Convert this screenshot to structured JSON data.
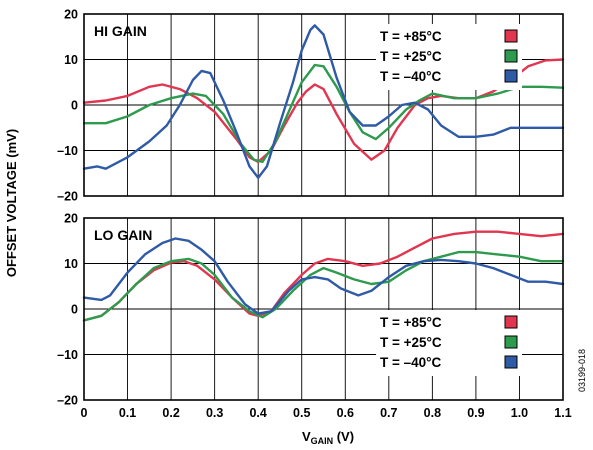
{
  "chart_data": [
    {
      "type": "line",
      "panel_label": "HI GAIN",
      "xlabel_main": "V",
      "xlabel_sub": "GAIN",
      "xlabel_unit": " (V)",
      "ylabel": "OFFSET VOLTAGE (mV)",
      "xlim": [
        0,
        1.1
      ],
      "ylim": [
        -20,
        20
      ],
      "x_ticks": [
        "0",
        "0.1",
        "0.2",
        "0.3",
        "0.4",
        "0.5",
        "0.6",
        "0.7",
        "0.8",
        "0.9",
        "1.0",
        "1.1"
      ],
      "y_ticks": [
        "20",
        "10",
        "0",
        "–10",
        "–20"
      ],
      "grid": true,
      "legend_placement": "top-right",
      "series": [
        {
          "name": "T = +85°C",
          "color": "#e0364f",
          "points": [
            [
              0.0,
              0.5
            ],
            [
              0.05,
              1.0
            ],
            [
              0.1,
              2.0
            ],
            [
              0.15,
              4.0
            ],
            [
              0.18,
              4.5
            ],
            [
              0.22,
              3.5
            ],
            [
              0.26,
              1.5
            ],
            [
              0.3,
              -1.5
            ],
            [
              0.35,
              -7.5
            ],
            [
              0.38,
              -11.5
            ],
            [
              0.4,
              -12.5
            ],
            [
              0.43,
              -10.0
            ],
            [
              0.46,
              -4.5
            ],
            [
              0.49,
              0.5
            ],
            [
              0.51,
              3.0
            ],
            [
              0.53,
              4.5
            ],
            [
              0.55,
              3.5
            ],
            [
              0.58,
              -2.0
            ],
            [
              0.62,
              -8.5
            ],
            [
              0.66,
              -12.0
            ],
            [
              0.69,
              -10.0
            ],
            [
              0.72,
              -5.0
            ],
            [
              0.76,
              0.0
            ],
            [
              0.79,
              1.5
            ],
            [
              0.82,
              2.0
            ],
            [
              0.86,
              1.5
            ],
            [
              0.9,
              1.5
            ],
            [
              0.94,
              3.0
            ],
            [
              0.98,
              5.5
            ],
            [
              1.02,
              8.5
            ],
            [
              1.06,
              9.8
            ],
            [
              1.1,
              10.0
            ]
          ]
        },
        {
          "name": "T = +25°C",
          "color": "#2e9a4e",
          "points": [
            [
              0.0,
              -4.0
            ],
            [
              0.05,
              -4.0
            ],
            [
              0.1,
              -2.5
            ],
            [
              0.15,
              0.0
            ],
            [
              0.2,
              1.5
            ],
            [
              0.25,
              2.5
            ],
            [
              0.28,
              2.0
            ],
            [
              0.32,
              -2.0
            ],
            [
              0.36,
              -8.5
            ],
            [
              0.39,
              -12.0
            ],
            [
              0.41,
              -12.5
            ],
            [
              0.44,
              -8.0
            ],
            [
              0.47,
              -1.5
            ],
            [
              0.5,
              5.0
            ],
            [
              0.53,
              8.8
            ],
            [
              0.55,
              8.5
            ],
            [
              0.58,
              4.0
            ],
            [
              0.61,
              -1.5
            ],
            [
              0.64,
              -6.0
            ],
            [
              0.67,
              -7.5
            ],
            [
              0.7,
              -5.0
            ],
            [
              0.74,
              -1.0
            ],
            [
              0.77,
              1.0
            ],
            [
              0.8,
              2.5
            ],
            [
              0.85,
              1.5
            ],
            [
              0.9,
              1.5
            ],
            [
              0.95,
              2.5
            ],
            [
              1.0,
              4.0
            ],
            [
              1.05,
              4.0
            ],
            [
              1.1,
              3.8
            ]
          ]
        },
        {
          "name": "T = –40°C",
          "color": "#2f5aa6",
          "points": [
            [
              0.0,
              -14.0
            ],
            [
              0.03,
              -13.5
            ],
            [
              0.05,
              -14.0
            ],
            [
              0.1,
              -11.5
            ],
            [
              0.15,
              -8.0
            ],
            [
              0.19,
              -4.5
            ],
            [
              0.22,
              0.0
            ],
            [
              0.25,
              5.5
            ],
            [
              0.27,
              7.5
            ],
            [
              0.29,
              7.0
            ],
            [
              0.32,
              1.0
            ],
            [
              0.35,
              -6.0
            ],
            [
              0.38,
              -13.5
            ],
            [
              0.4,
              -16.0
            ],
            [
              0.42,
              -13.5
            ],
            [
              0.45,
              -4.0
            ],
            [
              0.48,
              5.0
            ],
            [
              0.5,
              12.0
            ],
            [
              0.52,
              16.5
            ],
            [
              0.53,
              17.5
            ],
            [
              0.55,
              15.5
            ],
            [
              0.58,
              6.0
            ],
            [
              0.61,
              -1.5
            ],
            [
              0.64,
              -4.5
            ],
            [
              0.67,
              -4.5
            ],
            [
              0.7,
              -2.5
            ],
            [
              0.73,
              0.0
            ],
            [
              0.76,
              0.5
            ],
            [
              0.79,
              -1.0
            ],
            [
              0.82,
              -4.5
            ],
            [
              0.86,
              -7.0
            ],
            [
              0.9,
              -7.0
            ],
            [
              0.94,
              -6.5
            ],
            [
              0.98,
              -5.0
            ],
            [
              1.02,
              -5.0
            ],
            [
              1.06,
              -5.0
            ],
            [
              1.1,
              -5.0
            ]
          ]
        }
      ]
    },
    {
      "type": "line",
      "panel_label": "LO GAIN",
      "xlabel_main": "V",
      "xlabel_sub": "GAIN",
      "xlabel_unit": " (V)",
      "ylabel": "OFFSET VOLTAGE (mV)",
      "xlim": [
        0,
        1.1
      ],
      "ylim": [
        -20,
        20
      ],
      "x_ticks": [
        "0",
        "0.1",
        "0.2",
        "0.3",
        "0.4",
        "0.5",
        "0.6",
        "0.7",
        "0.8",
        "0.9",
        "1.0",
        "1.1"
      ],
      "y_ticks": [
        "20",
        "10",
        "0",
        "–10",
        "–20"
      ],
      "grid": true,
      "legend_placement": "bottom-right",
      "series": [
        {
          "name": "T = +85°C",
          "color": "#e0364f",
          "points": [
            [
              0.0,
              -2.5
            ],
            [
              0.04,
              -1.5
            ],
            [
              0.08,
              1.5
            ],
            [
              0.12,
              5.5
            ],
            [
              0.16,
              8.5
            ],
            [
              0.2,
              10.2
            ],
            [
              0.23,
              10.5
            ],
            [
              0.26,
              9.5
            ],
            [
              0.3,
              6.5
            ],
            [
              0.34,
              2.5
            ],
            [
              0.38,
              -1.0
            ],
            [
              0.4,
              -1.5
            ],
            [
              0.43,
              -0.5
            ],
            [
              0.46,
              3.5
            ],
            [
              0.5,
              7.5
            ],
            [
              0.53,
              10.0
            ],
            [
              0.56,
              11.0
            ],
            [
              0.6,
              10.5
            ],
            [
              0.64,
              9.5
            ],
            [
              0.68,
              10.0
            ],
            [
              0.72,
              11.5
            ],
            [
              0.76,
              13.5
            ],
            [
              0.8,
              15.5
            ],
            [
              0.85,
              16.5
            ],
            [
              0.9,
              17.0
            ],
            [
              0.95,
              17.0
            ],
            [
              1.0,
              16.5
            ],
            [
              1.05,
              16.0
            ],
            [
              1.1,
              16.5
            ]
          ]
        },
        {
          "name": "T = +25°C",
          "color": "#2e9a4e",
          "points": [
            [
              0.0,
              -2.5
            ],
            [
              0.04,
              -1.5
            ],
            [
              0.08,
              1.5
            ],
            [
              0.12,
              5.5
            ],
            [
              0.16,
              9.0
            ],
            [
              0.2,
              10.5
            ],
            [
              0.24,
              11.0
            ],
            [
              0.27,
              10.0
            ],
            [
              0.3,
              7.5
            ],
            [
              0.34,
              2.5
            ],
            [
              0.38,
              -0.5
            ],
            [
              0.41,
              -1.8
            ],
            [
              0.44,
              0.0
            ],
            [
              0.48,
              4.0
            ],
            [
              0.52,
              7.5
            ],
            [
              0.55,
              9.0
            ],
            [
              0.58,
              8.0
            ],
            [
              0.62,
              6.5
            ],
            [
              0.66,
              5.5
            ],
            [
              0.7,
              6.0
            ],
            [
              0.74,
              8.5
            ],
            [
              0.78,
              10.5
            ],
            [
              0.82,
              11.5
            ],
            [
              0.86,
              12.5
            ],
            [
              0.9,
              12.5
            ],
            [
              0.95,
              12.0
            ],
            [
              1.0,
              11.5
            ],
            [
              1.05,
              10.5
            ],
            [
              1.1,
              10.5
            ]
          ]
        },
        {
          "name": "T = –40°C",
          "color": "#2f5aa6",
          "points": [
            [
              0.0,
              2.5
            ],
            [
              0.04,
              2.0
            ],
            [
              0.06,
              3.0
            ],
            [
              0.1,
              8.0
            ],
            [
              0.14,
              12.0
            ],
            [
              0.18,
              14.5
            ],
            [
              0.21,
              15.5
            ],
            [
              0.24,
              15.0
            ],
            [
              0.27,
              13.0
            ],
            [
              0.3,
              10.5
            ],
            [
              0.33,
              6.0
            ],
            [
              0.37,
              1.0
            ],
            [
              0.4,
              -1.0
            ],
            [
              0.43,
              -0.5
            ],
            [
              0.47,
              4.0
            ],
            [
              0.5,
              6.5
            ],
            [
              0.53,
              7.0
            ],
            [
              0.56,
              6.5
            ],
            [
              0.59,
              4.5
            ],
            [
              0.63,
              3.0
            ],
            [
              0.66,
              4.0
            ],
            [
              0.7,
              7.0
            ],
            [
              0.74,
              9.5
            ],
            [
              0.78,
              10.5
            ],
            [
              0.82,
              10.8
            ],
            [
              0.86,
              10.5
            ],
            [
              0.9,
              10.0
            ],
            [
              0.94,
              9.0
            ],
            [
              0.98,
              7.5
            ],
            [
              1.02,
              6.0
            ],
            [
              1.06,
              6.0
            ],
            [
              1.1,
              5.5
            ]
          ]
        }
      ]
    }
  ],
  "figure_id": "03199-018"
}
